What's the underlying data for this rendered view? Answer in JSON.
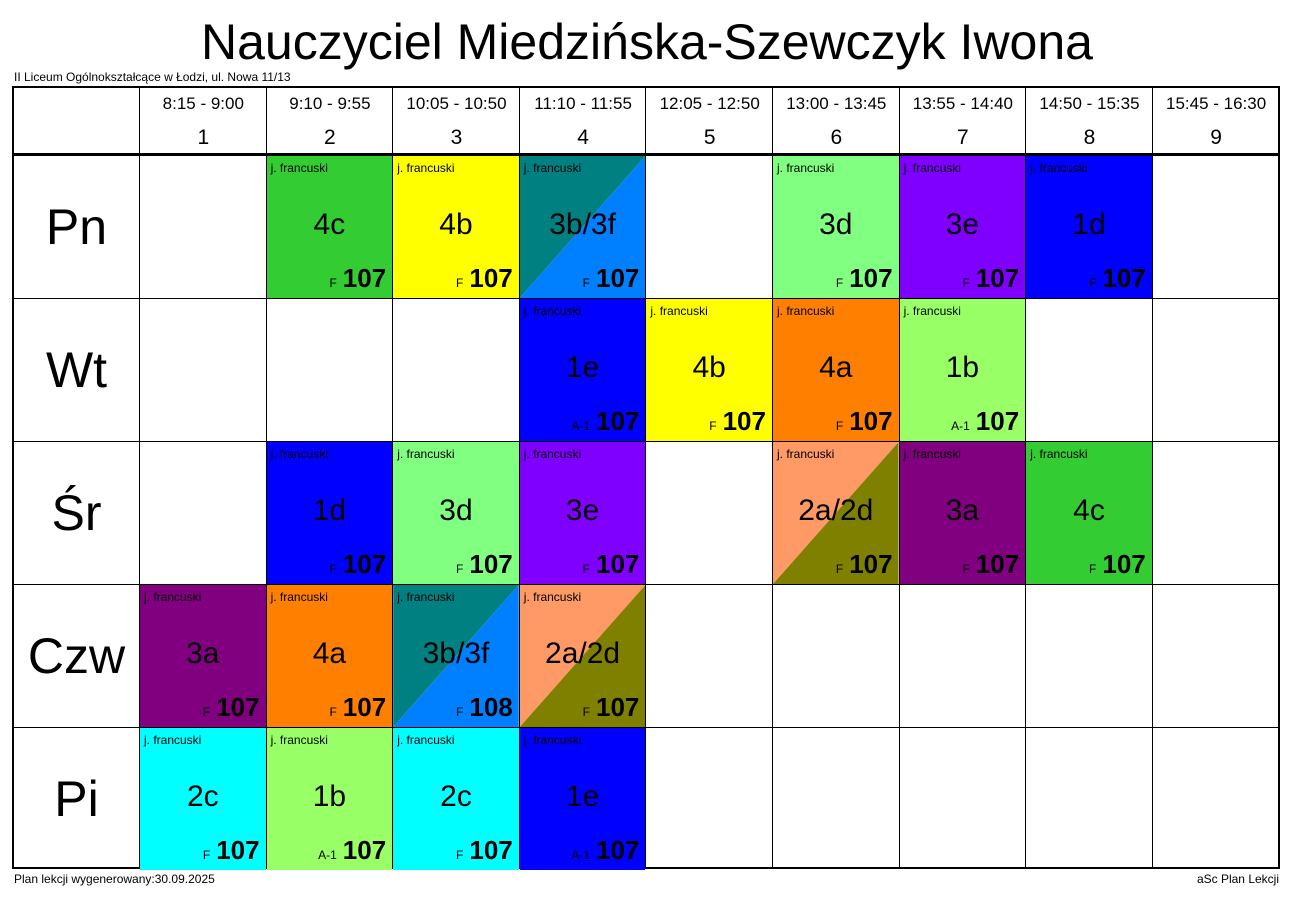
{
  "title": "Nauczyciel Miedzińska-Szewczyk Iwona",
  "school": "II Liceum Ogólnokształcące w Łodzi, ul. Nowa 11/13",
  "footer_left": "Plan lekcji wygenerowany:30.09.2025",
  "footer_right": "aSc Plan Lekcji",
  "periods": [
    {
      "time": "8:15 - 9:00",
      "num": "1"
    },
    {
      "time": "9:10 - 9:55",
      "num": "2"
    },
    {
      "time": "10:05 - 10:50",
      "num": "3"
    },
    {
      "time": "11:10 - 11:55",
      "num": "4"
    },
    {
      "time": "12:05 - 12:50",
      "num": "5"
    },
    {
      "time": "13:00 - 13:45",
      "num": "6"
    },
    {
      "time": "13:55 - 14:40",
      "num": "7"
    },
    {
      "time": "14:50 - 15:35",
      "num": "8"
    },
    {
      "time": "15:45 - 16:30",
      "num": "9"
    }
  ],
  "days": [
    "Pn",
    "Wt",
    "Śr",
    "Czw",
    "Pi"
  ],
  "lessons": [
    {
      "day": 0,
      "period": 1,
      "subject": "j. francuski",
      "class": "4c",
      "building": "F",
      "room": "107",
      "colors": [
        "#33cc33"
      ]
    },
    {
      "day": 0,
      "period": 2,
      "subject": "j. francuski",
      "class": "4b",
      "building": "F",
      "room": "107",
      "colors": [
        "#ffff00"
      ]
    },
    {
      "day": 0,
      "period": 3,
      "subject": "j. francuski",
      "class": "3b/3f",
      "building": "F",
      "room": "107",
      "colors": [
        "#008080",
        "#0080ff"
      ]
    },
    {
      "day": 0,
      "period": 5,
      "subject": "j. francuski",
      "class": "3d",
      "building": "F",
      "room": "107",
      "colors": [
        "#80ff80"
      ]
    },
    {
      "day": 0,
      "period": 6,
      "subject": "j. francuski",
      "class": "3e",
      "building": "F",
      "room": "107",
      "colors": [
        "#8000ff"
      ]
    },
    {
      "day": 0,
      "period": 7,
      "subject": "j. francuski",
      "class": "1d",
      "building": "F",
      "room": "107",
      "colors": [
        "#0000ff"
      ]
    },
    {
      "day": 1,
      "period": 3,
      "subject": "j. francuski",
      "class": "1e",
      "building": "A-1",
      "room": "107",
      "colors": [
        "#0000ff"
      ]
    },
    {
      "day": 1,
      "period": 4,
      "subject": "j. francuski",
      "class": "4b",
      "building": "F",
      "room": "107",
      "colors": [
        "#ffff00"
      ]
    },
    {
      "day": 1,
      "period": 5,
      "subject": "j. francuski",
      "class": "4a",
      "building": "F",
      "room": "107",
      "colors": [
        "#ff8000"
      ]
    },
    {
      "day": 1,
      "period": 6,
      "subject": "j. francuski",
      "class": "1b",
      "building": "A-1",
      "room": "107",
      "colors": [
        "#99ff66"
      ]
    },
    {
      "day": 2,
      "period": 1,
      "subject": "j. francuski",
      "class": "1d",
      "building": "F",
      "room": "107",
      "colors": [
        "#0000ff"
      ]
    },
    {
      "day": 2,
      "period": 2,
      "subject": "j. francuski",
      "class": "3d",
      "building": "F",
      "room": "107",
      "colors": [
        "#80ff80"
      ]
    },
    {
      "day": 2,
      "period": 3,
      "subject": "j. francuski",
      "class": "3e",
      "building": "F",
      "room": "107",
      "colors": [
        "#8000ff"
      ]
    },
    {
      "day": 2,
      "period": 5,
      "subject": "j. francuski",
      "class": "2a/2d",
      "building": "F",
      "room": "107",
      "colors": [
        "#ff9966",
        "#808000"
      ]
    },
    {
      "day": 2,
      "period": 6,
      "subject": "j. francuski",
      "class": "3a",
      "building": "F",
      "room": "107",
      "colors": [
        "#800080"
      ]
    },
    {
      "day": 2,
      "period": 7,
      "subject": "j. francuski",
      "class": "4c",
      "building": "F",
      "room": "107",
      "colors": [
        "#33cc33"
      ]
    },
    {
      "day": 3,
      "period": 0,
      "subject": "j. francuski",
      "class": "3a",
      "building": "F",
      "room": "107",
      "colors": [
        "#800080"
      ]
    },
    {
      "day": 3,
      "period": 1,
      "subject": "j. francuski",
      "class": "4a",
      "building": "F",
      "room": "107",
      "colors": [
        "#ff8000"
      ]
    },
    {
      "day": 3,
      "period": 2,
      "subject": "j. francuski",
      "class": "3b/3f",
      "building": "F",
      "room": "108",
      "colors": [
        "#008080",
        "#0080ff"
      ]
    },
    {
      "day": 3,
      "period": 3,
      "subject": "j. francuski",
      "class": "2a/2d",
      "building": "F",
      "room": "107",
      "colors": [
        "#ff9966",
        "#808000"
      ]
    },
    {
      "day": 4,
      "period": 0,
      "subject": "j. francuski",
      "class": "2c",
      "building": "F",
      "room": "107",
      "colors": [
        "#00ffff"
      ]
    },
    {
      "day": 4,
      "period": 1,
      "subject": "j. francuski",
      "class": "1b",
      "building": "A-1",
      "room": "107",
      "colors": [
        "#99ff66"
      ]
    },
    {
      "day": 4,
      "period": 2,
      "subject": "j. francuski",
      "class": "2c",
      "building": "F",
      "room": "107",
      "colors": [
        "#00ffff"
      ]
    },
    {
      "day": 4,
      "period": 3,
      "subject": "j. francuski",
      "class": "1e",
      "building": "A-1",
      "room": "107",
      "colors": [
        "#0000ff"
      ]
    }
  ]
}
